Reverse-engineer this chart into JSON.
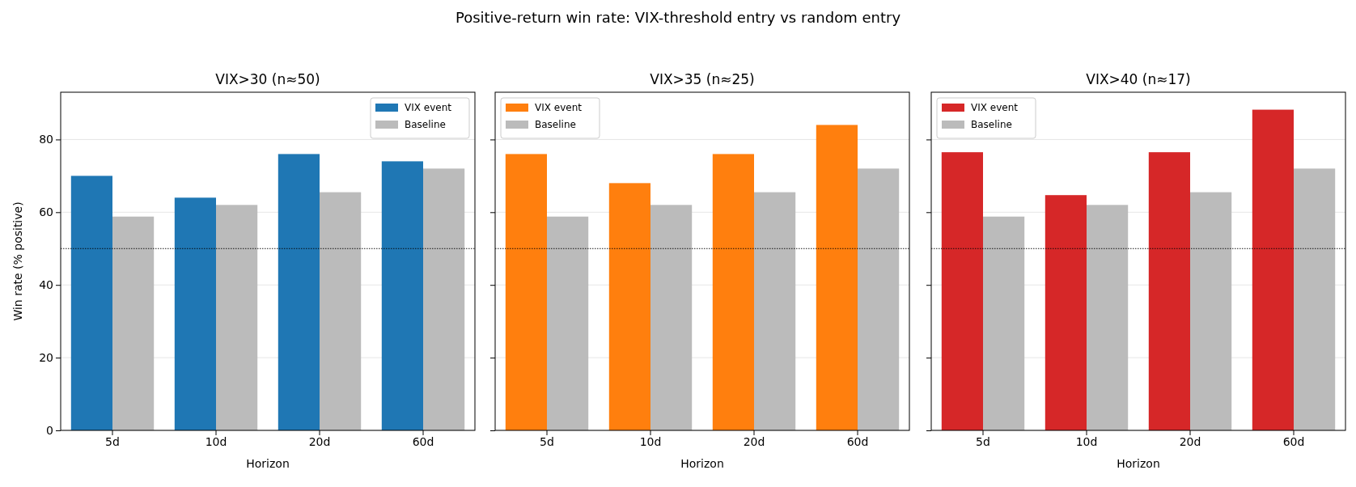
{
  "chart_data": [
    {
      "type": "bar",
      "title": "VIX>30 (n≈50)",
      "xlabel": "Horizon",
      "ylabel": "Win rate (% positive)",
      "annotations": [
        "Positive-return win rate: VIX-threshold entry vs random entry"
      ],
      "categories": [
        "5d",
        "10d",
        "20d",
        "60d"
      ],
      "series": [
        {
          "name": "VIX event",
          "color": "#1f77b4",
          "values": [
            70,
            64,
            76,
            74
          ]
        },
        {
          "name": "Baseline",
          "color": "#bbbbbb",
          "values": [
            58.8,
            62,
            65.5,
            72
          ]
        }
      ],
      "ylim": [
        0,
        93
      ],
      "yticks": [
        0,
        20,
        40,
        60,
        80
      ],
      "grid": "y",
      "legend": "top right",
      "ref_lines": [
        {
          "axis": "y",
          "value": 50,
          "color": "#000000",
          "line_style": "dotted"
        }
      ]
    },
    {
      "type": "bar",
      "title": "VIX>35 (n≈25)",
      "xlabel": "Horizon",
      "categories": [
        "5d",
        "10d",
        "20d",
        "60d"
      ],
      "series": [
        {
          "name": "VIX event",
          "color": "#ff7f0e",
          "values": [
            76,
            68,
            76,
            84
          ]
        },
        {
          "name": "Baseline",
          "color": "#bbbbbb",
          "values": [
            58.8,
            62,
            65.5,
            72
          ]
        }
      ],
      "ylim": [
        0,
        93
      ],
      "yticks": [
        0,
        20,
        40,
        60,
        80
      ],
      "grid": "y",
      "legend": "top left",
      "tick_labels": "x",
      "ref_lines": [
        {
          "axis": "y",
          "value": 50,
          "color": "#000000",
          "line_style": "dotted"
        }
      ]
    },
    {
      "type": "bar",
      "title": "VIX>40 (n≈17)",
      "xlabel": "Horizon",
      "categories": [
        "5d",
        "10d",
        "20d",
        "60d"
      ],
      "series": [
        {
          "name": "VIX event",
          "color": "#d62728",
          "values": [
            76.5,
            64.7,
            76.5,
            88.2
          ]
        },
        {
          "name": "Baseline",
          "color": "#bbbbbb",
          "values": [
            58.8,
            62,
            65.5,
            72
          ]
        }
      ],
      "ylim": [
        0,
        93
      ],
      "yticks": [
        0,
        20,
        40,
        60,
        80
      ],
      "grid": "y",
      "legend": "top left",
      "tick_labels": "x",
      "ref_lines": [
        {
          "axis": "y",
          "value": 50,
          "color": "#000000",
          "line_style": "dotted"
        }
      ]
    }
  ]
}
